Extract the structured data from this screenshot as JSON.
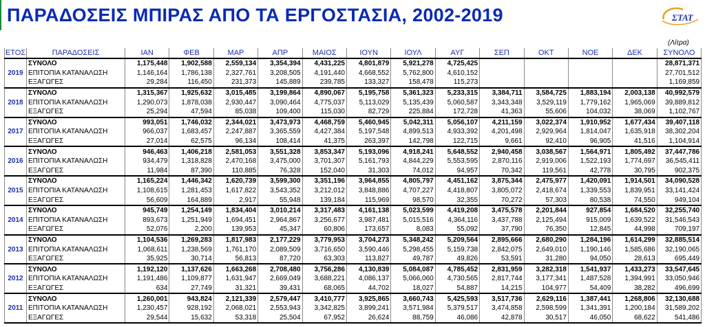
{
  "title": "ΠΑΡΑΔΟΣΕΙΣ ΜΠΙΡΑΣ ΑΠΟ ΤΑ ΕΡΓΟΣΤΑΣΙΑ, 2002-2019",
  "logo_text": "ΣΤΑΤ",
  "units": "(Λίτρα)",
  "colors": {
    "title": "#0a2ab4",
    "header": "#1b2fb0",
    "logo": "#e8a020"
  },
  "headers": [
    "ΕΤΟΣ",
    "ΠΑΡΑΔΟΣΕΙΣ",
    "ΙΑΝ",
    "ΦΕΒ",
    "ΜΑΡ",
    "ΑΠΡ",
    "ΜΑΙΟΣ",
    "ΙΟΥΝ",
    "ΙΟΥΛ",
    "ΑΥΓ",
    "ΣΕΠ",
    "ΟΚΤ",
    "ΝΟΕ",
    "ΔΕΚ",
    "ΣΥΝΟΛΟ"
  ],
  "row_labels": [
    "ΣΥΝΟΛΟ",
    "ΕΠΙΤΟΠΙΑ ΚΑΤΑΝΑΛΩΣΗ",
    "ΕΞΑΓΩΓΕΣ"
  ],
  "years": [
    {
      "year": "2019",
      "rows": [
        [
          "1,175,448",
          "1,902,588",
          "2,559,134",
          "3,354,394",
          "4,431,225",
          "4,801,879",
          "5,921,278",
          "4,725,425",
          "",
          "",
          "",
          "",
          "28,871,371"
        ],
        [
          "1,146,164",
          "1,786,138",
          "2,327,761",
          "3,208,505",
          "4,191,440",
          "4,668,552",
          "5,762,800",
          "4,610,152",
          "",
          "",
          "",
          "",
          "27,701,512"
        ],
        [
          "29,284",
          "116,450",
          "231,373",
          "145,889",
          "239,785",
          "133,327",
          "158,478",
          "115,273",
          "",
          "",
          "",
          "",
          "1,169,859"
        ]
      ]
    },
    {
      "year": "2018",
      "rows": [
        [
          "1,315,367",
          "1,925,632",
          "3,015,485",
          "3,199,864",
          "4,890,067",
          "5,195,758",
          "5,361,323",
          "5,233,315",
          "3,384,711",
          "3,584,725",
          "1,883,194",
          "2,003,138",
          "40,992,579"
        ],
        [
          "1,290,073",
          "1,878,038",
          "2,930,447",
          "3,090,464",
          "4,775,037",
          "5,113,029",
          "5,135,439",
          "5,060,587",
          "3,343,348",
          "3,529,119",
          "1,779,162",
          "1,965,069",
          "39,889,812"
        ],
        [
          "25,294",
          "47,594",
          "85,038",
          "109,400",
          "115,030",
          "82,729",
          "225,884",
          "172,728",
          "41,363",
          "55,606",
          "104,032",
          "38,069",
          "1,102,767"
        ]
      ]
    },
    {
      "year": "2017",
      "rows": [
        [
          "993,051",
          "1,746,032",
          "2,344,021",
          "3,473,973",
          "4,468,759",
          "5,460,945",
          "5,042,311",
          "5,056,107",
          "4,211,159",
          "3,022,374",
          "1,910,952",
          "1,677,434",
          "39,407,118"
        ],
        [
          "966,037",
          "1,683,457",
          "2,247,887",
          "3,365,559",
          "4,427,384",
          "5,197,548",
          "4,899,513",
          "4,933,392",
          "4,201,498",
          "2,929,964",
          "1,814,047",
          "1,635,918",
          "38,302,204"
        ],
        [
          "27,014",
          "62,575",
          "96,134",
          "108,414",
          "41,375",
          "263,397",
          "142,798",
          "122,715",
          "9,661",
          "92,410",
          "96,905",
          "41,516",
          "1,104,914"
        ]
      ]
    },
    {
      "year": "2016",
      "rows": [
        [
          "946,463",
          "1,406,218",
          "2,581,053",
          "3,551,328",
          "3,853,347",
          "5,193,096",
          "4,918,241",
          "5,648,552",
          "2,940,458",
          "3,038,567",
          "1,564,971",
          "1,805,492",
          "37,447,786"
        ],
        [
          "934,479",
          "1,318,828",
          "2,470,168",
          "3,475,000",
          "3,701,307",
          "5,161,793",
          "4,844,229",
          "5,553,595",
          "2,870,116",
          "2,919,006",
          "1,522,193",
          "1,774,697",
          "36,545,411"
        ],
        [
          "11,984",
          "87,390",
          "110,885",
          "76,328",
          "152,040",
          "31,303",
          "74,012",
          "94,957",
          "70,342",
          "119,561",
          "42,778",
          "30,795",
          "902,375"
        ]
      ]
    },
    {
      "year": "2015",
      "rows": [
        [
          "1,165,224",
          "1,446,342",
          "1,620,739",
          "3,599,300",
          "3,351,196",
          "3,964,855",
          "4,805,797",
          "4,451,162",
          "3,875,344",
          "2,475,977",
          "1,420,091",
          "1,914,501",
          "34,090,528"
        ],
        [
          "1,108,615",
          "1,281,453",
          "1,617,822",
          "3,543,352",
          "3,212,012",
          "3,848,886",
          "4,707,227",
          "4,418,807",
          "3,805,072",
          "2,418,674",
          "1,339,553",
          "1,839,951",
          "33,141,424"
        ],
        [
          "56,609",
          "164,889",
          "2,917",
          "55,948",
          "139,184",
          "115,969",
          "98,570",
          "32,355",
          "70,272",
          "57,303",
          "80,538",
          "74,550",
          "949,104"
        ]
      ]
    },
    {
      "year": "2014",
      "rows": [
        [
          "945,749",
          "1,254,149",
          "1,834,404",
          "3,010,214",
          "3,317,483",
          "4,161,138",
          "5,023,599",
          "4,419,208",
          "3,475,578",
          "2,201,844",
          "927,854",
          "1,684,520",
          "32,255,740"
        ],
        [
          "893,673",
          "1,251,949",
          "1,694,451",
          "2,964,867",
          "3,256,677",
          "3,987,481",
          "5,015,516",
          "4,364,116",
          "3,437,788",
          "2,125,494",
          "915,009",
          "1,639,522",
          "31,546,543"
        ],
        [
          "52,076",
          "2,200",
          "139,953",
          "45,347",
          "60,806",
          "173,657",
          "8,083",
          "55,092",
          "37,790",
          "76,350",
          "12,845",
          "44,998",
          "709,197"
        ]
      ]
    },
    {
      "year": "2013",
      "rows": [
        [
          "1,104,536",
          "1,269,283",
          "1,817,983",
          "2,177,229",
          "3,779,953",
          "3,704,273",
          "5,348,242",
          "5,209,564",
          "2,895,666",
          "2,680,290",
          "1,284,196",
          "1,614,299",
          "32,885,514"
        ],
        [
          "1,068,611",
          "1,238,569",
          "1,761,170",
          "2,089,509",
          "3,716,650",
          "3,590,446",
          "5,298,455",
          "5,159,738",
          "2,842,075",
          "2,649,010",
          "1,190,146",
          "1,585,686",
          "32,190,065"
        ],
        [
          "35,925",
          "30,714",
          "56,813",
          "87,720",
          "63,303",
          "113,827",
          "49,787",
          "49,826",
          "53,591",
          "31,280",
          "94,050",
          "28,613",
          "695,449"
        ]
      ]
    },
    {
      "year": "2012",
      "rows": [
        [
          "1,192,120",
          "1,137,626",
          "1,663,268",
          "2,708,480",
          "3,756,286",
          "4,130,839",
          "5,084,087",
          "4,785,452",
          "2,831,959",
          "3,282,318",
          "1,541,937",
          "1,433,273",
          "33,547,645"
        ],
        [
          "1,191,486",
          "1,109,877",
          "1,631,947",
          "2,669,049",
          "3,688,221",
          "4,086,137",
          "5,066,060",
          "4,730,565",
          "2,817,744",
          "3,177,341",
          "1,487,528",
          "1,394,991",
          "33,050,946"
        ],
        [
          "634",
          "27,749",
          "31,321",
          "39,431",
          "68,065",
          "44,702",
          "18,027",
          "54,887",
          "14,215",
          "104,977",
          "54,409",
          "38,282",
          "496,699"
        ]
      ]
    },
    {
      "year": "2011",
      "rows": [
        [
          "1,260,001",
          "943,824",
          "2,121,339",
          "2,579,447",
          "3,410,777",
          "3,925,865",
          "3,660,743",
          "5,425,593",
          "3,517,736",
          "2,629,116",
          "1,387,441",
          "1,268,806",
          "32,130,688"
        ],
        [
          "1,230,457",
          "928,192",
          "2,068,021",
          "2,553,943",
          "3,342,825",
          "3,899,241",
          "3,571,984",
          "5,379,517",
          "3,474,858",
          "2,598,599",
          "1,341,391",
          "1,200,184",
          "31,589,202"
        ],
        [
          "29,544",
          "15,632",
          "53,318",
          "25,504",
          "67,952",
          "26,624",
          "88,759",
          "46,086",
          "42,878",
          "30,517",
          "46,050",
          "68,622",
          "541,486"
        ]
      ]
    }
  ]
}
